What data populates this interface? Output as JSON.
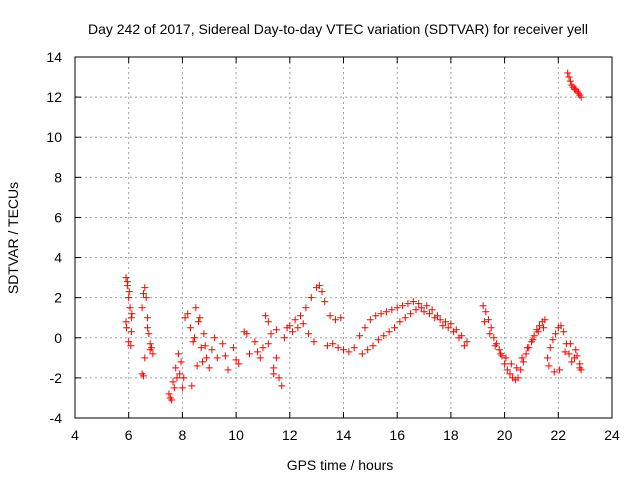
{
  "chart_data": {
    "type": "scatter",
    "title": "Day 242 of 2017, Sidereal Day-to-day VTEC variation (SDTVAR) for receiver yell",
    "xlabel": "GPS time / hours",
    "ylabel": "SDTVAR / TECUs",
    "xlim": [
      4,
      24
    ],
    "ylim": [
      -4,
      14
    ],
    "xticks": [
      4,
      6,
      8,
      10,
      12,
      14,
      16,
      18,
      20,
      22,
      24
    ],
    "yticks": [
      -4,
      -2,
      0,
      2,
      4,
      6,
      8,
      10,
      12,
      14
    ],
    "grid": true,
    "marker": "+",
    "color": "#ff0000",
    "series": [
      {
        "name": "SDTVAR",
        "x": [
          5.9,
          5.95,
          6.0,
          6.05,
          6.1,
          5.92,
          6.0,
          6.08,
          5.95,
          6.12,
          5.9,
          6.02,
          6.1,
          6.5,
          6.55,
          6.6,
          6.65,
          6.7,
          6.75,
          6.8,
          6.85,
          6.9,
          6.6,
          6.7,
          6.8,
          6.5,
          6.55,
          7.5,
          7.6,
          7.7,
          7.8,
          7.9,
          8.0,
          7.55,
          7.65,
          7.75,
          7.85,
          7.95,
          8.05,
          8.1,
          8.2,
          8.3,
          8.4,
          8.5,
          8.6,
          8.7,
          8.8,
          8.9,
          9.0,
          8.35,
          8.45,
          8.55,
          8.65,
          8.75,
          8.85,
          9.1,
          9.3,
          9.5,
          9.7,
          9.9,
          10.1,
          10.3,
          10.5,
          10.7,
          10.9,
          9.2,
          9.6,
          10.0,
          10.4,
          10.8,
          11.0,
          11.1,
          11.2,
          11.3,
          11.4,
          11.5,
          11.6,
          11.7,
          11.8,
          11.9,
          11.2,
          11.4,
          11.5,
          12.0,
          12.2,
          12.4,
          12.6,
          12.8,
          13.0,
          13.1,
          13.2,
          13.3,
          13.5,
          13.7,
          13.9,
          12.1,
          12.3,
          12.5,
          12.7,
          12.9,
          13.4,
          13.6,
          13.8,
          14.0,
          14.2,
          14.4,
          14.6,
          14.8,
          15.0,
          15.2,
          15.4,
          15.6,
          15.8,
          16.0,
          16.2,
          16.4,
          16.6,
          16.8,
          14.7,
          14.9,
          15.1,
          15.3,
          15.5,
          15.7,
          15.9,
          16.1,
          16.3,
          16.5,
          16.7,
          16.9,
          17.0,
          17.2,
          17.4,
          17.6,
          17.8,
          18.0,
          18.2,
          18.4,
          18.6,
          17.1,
          17.3,
          17.5,
          17.7,
          17.9,
          18.1,
          18.3,
          18.5,
          19.2,
          19.3,
          19.4,
          19.5,
          19.6,
          19.7,
          19.8,
          19.9,
          20.0,
          20.1,
          20.2,
          20.3,
          20.4,
          20.5,
          20.6,
          20.7,
          20.8,
          20.9,
          21.0,
          21.1,
          21.2,
          21.3,
          21.4,
          21.5,
          19.25,
          19.45,
          19.65,
          19.85,
          20.05,
          20.25,
          20.45,
          20.65,
          20.85,
          21.05,
          21.25,
          21.45,
          21.6,
          21.7,
          21.8,
          21.9,
          22.0,
          22.1,
          22.2,
          22.3,
          22.4,
          22.5,
          22.6,
          22.7,
          22.8,
          22.85,
          21.65,
          21.85,
          22.05,
          22.25,
          22.45,
          22.65,
          22.8,
          22.35,
          22.4,
          22.45,
          22.5,
          22.55,
          22.6,
          22.65,
          22.7,
          22.75,
          22.8,
          22.85
        ],
        "y": [
          3.0,
          2.6,
          2.0,
          1.5,
          1.0,
          0.5,
          -0.2,
          -0.4,
          2.8,
          1.2,
          0.8,
          2.3,
          0.3,
          1.5,
          2.2,
          2.5,
          2.0,
          1.0,
          0.2,
          -0.3,
          -0.5,
          -0.8,
          -1.0,
          0.5,
          -0.6,
          -1.8,
          -1.9,
          -2.8,
          -3.1,
          -2.5,
          -2.0,
          -1.8,
          -2.5,
          -3.0,
          -2.2,
          -1.5,
          -0.8,
          -1.2,
          -2.0,
          1.0,
          1.2,
          0.5,
          -0.2,
          1.5,
          0.8,
          -0.5,
          0.2,
          -1.0,
          -1.5,
          -2.4,
          0.0,
          -1.4,
          1.0,
          -1.2,
          -0.4,
          -0.6,
          -1.0,
          -0.3,
          -1.6,
          -0.5,
          -1.3,
          0.3,
          -0.8,
          -0.2,
          -1.0,
          0.0,
          -0.9,
          -1.1,
          0.2,
          -0.7,
          -0.5,
          1.1,
          0.8,
          0.2,
          -1.5,
          -1.0,
          -2.0,
          -2.4,
          0.0,
          0.5,
          -0.3,
          -1.8,
          0.4,
          0.6,
          0.9,
          1.1,
          1.5,
          2.0,
          2.5,
          2.6,
          2.3,
          1.8,
          1.1,
          0.9,
          1.0,
          0.3,
          0.5,
          0.7,
          0.2,
          -0.2,
          -0.4,
          -0.3,
          -0.5,
          -0.6,
          -0.7,
          -0.5,
          0.1,
          0.5,
          0.9,
          1.1,
          1.2,
          1.3,
          1.4,
          1.5,
          1.6,
          1.7,
          1.8,
          1.7,
          -0.8,
          -0.6,
          -0.4,
          -0.1,
          0.1,
          0.3,
          0.5,
          0.8,
          1.0,
          1.2,
          1.4,
          1.5,
          1.3,
          1.2,
          1.0,
          0.9,
          0.8,
          0.7,
          0.4,
          0.1,
          -0.2,
          1.6,
          1.4,
          1.1,
          0.6,
          0.5,
          0.3,
          0.0,
          -0.4,
          1.6,
          1.3,
          0.9,
          0.5,
          0.0,
          -0.3,
          -0.6,
          -0.9,
          -1.3,
          -1.6,
          -1.8,
          -2.0,
          -2.1,
          -2.0,
          -1.6,
          -1.2,
          -0.8,
          -0.5,
          -0.2,
          0.1,
          0.4,
          0.6,
          0.8,
          0.9,
          0.8,
          0.2,
          -0.4,
          -0.8,
          -1.0,
          -1.3,
          -1.5,
          -1.0,
          -0.5,
          -0.1,
          0.3,
          0.5,
          -1.0,
          -0.5,
          -0.1,
          0.2,
          0.5,
          0.6,
          0.3,
          -0.3,
          -0.8,
          -1.2,
          -1.0,
          -0.9,
          -1.5,
          -1.6,
          -1.4,
          -1.7,
          -1.6,
          -0.7,
          -0.3,
          -0.6,
          -1.3,
          13.2,
          13.0,
          12.8,
          12.6,
          12.5,
          12.4,
          12.4,
          12.3,
          12.2,
          12.1,
          12.0
        ]
      }
    ]
  }
}
